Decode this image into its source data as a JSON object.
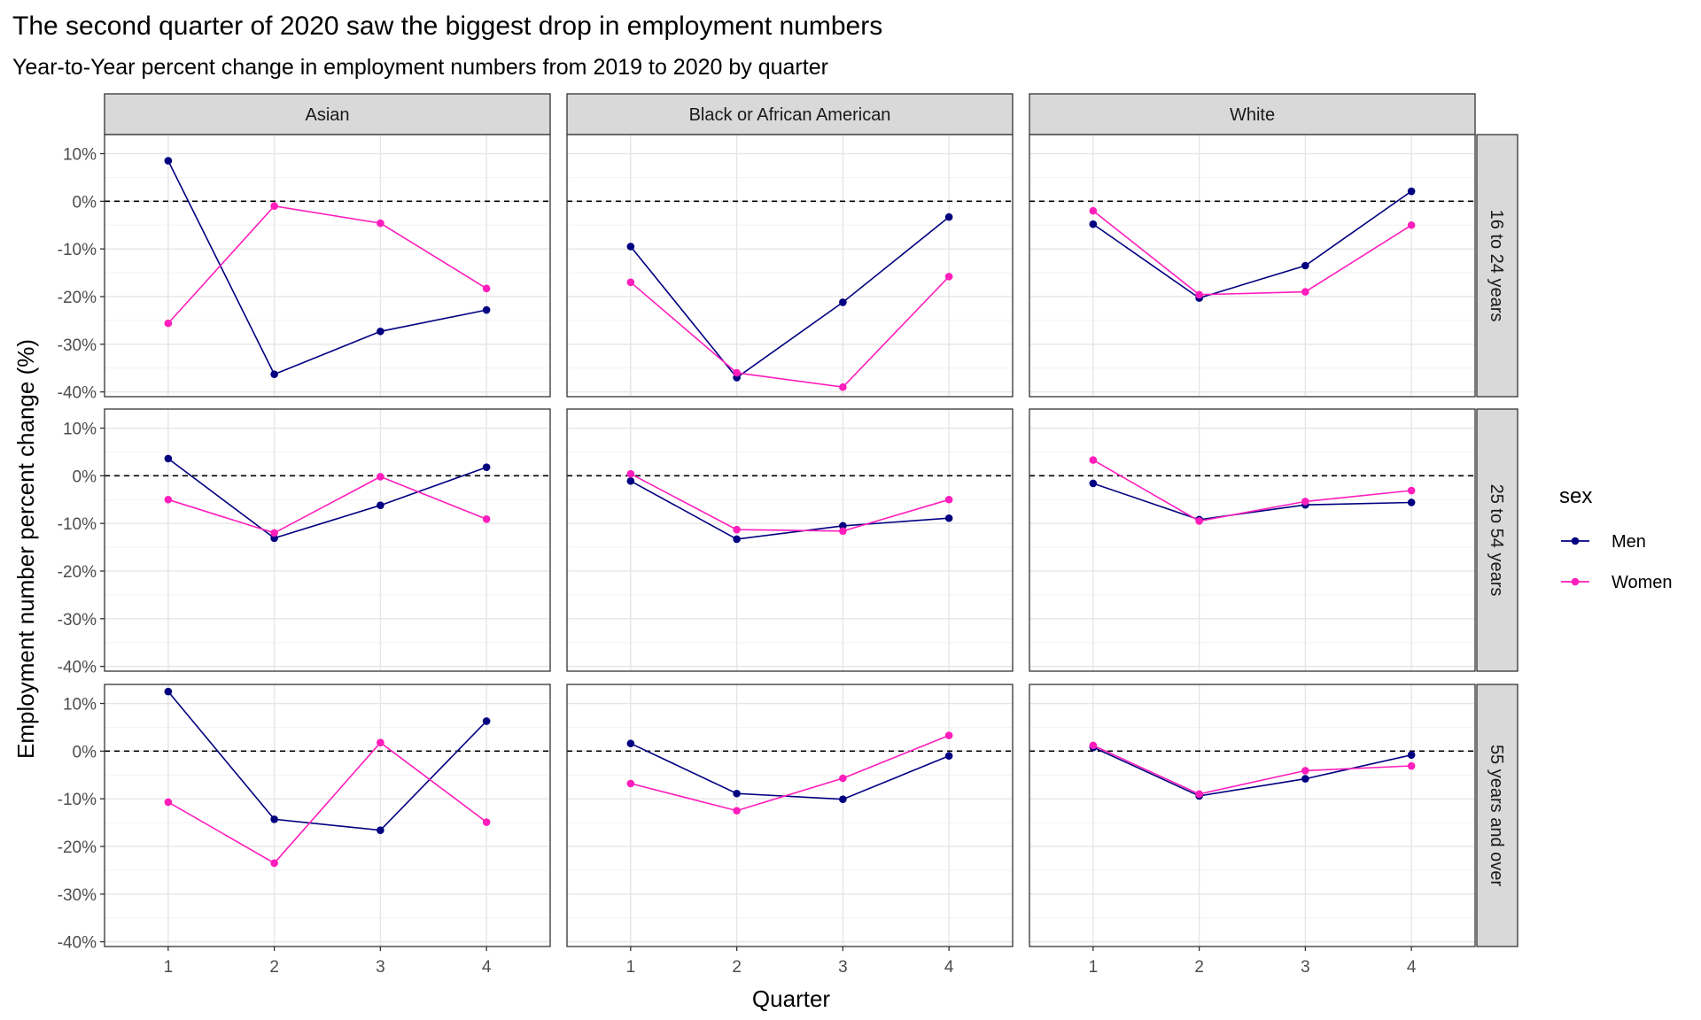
{
  "chart_data": {
    "type": "line",
    "title": "The second quarter of 2020 saw the biggest drop in employment numbers",
    "subtitle": "Year-to-Year percent change in employment numbers from 2019 to 2020 by quarter",
    "xlabel": "Quarter",
    "ylabel": "Employment number percent change (%)",
    "x": [
      1,
      2,
      3,
      4
    ],
    "x_tick_labels": [
      "1",
      "2",
      "3",
      "4"
    ],
    "ylim": [
      -41,
      14
    ],
    "y_ticks": [
      10,
      0,
      -10,
      -20,
      -30,
      -40
    ],
    "y_tick_labels": [
      "10%",
      "0%",
      "-10%",
      "-20%",
      "-30%",
      "-40%"
    ],
    "reference_line": {
      "y": 0,
      "style": "dashed"
    },
    "grid": true,
    "facet_columns": [
      "Asian",
      "Black or African American",
      "White"
    ],
    "facet_rows": [
      "16 to 24 years",
      "25 to 54 years",
      "55 years and over"
    ],
    "legend": {
      "title": "sex",
      "position": "right",
      "entries": [
        {
          "name": "Men",
          "color": "#000080"
        },
        {
          "name": "Women",
          "color": "#FF1DBC"
        }
      ]
    },
    "panels": [
      {
        "column": "Asian",
        "row": "16 to 24 years",
        "series": [
          {
            "name": "Men",
            "values": [
              8.5,
              -36.3,
              -27.3,
              -22.8
            ]
          },
          {
            "name": "Women",
            "values": [
              -25.6,
              -1.0,
              -4.6,
              -18.3
            ]
          }
        ]
      },
      {
        "column": "Black or African American",
        "row": "16 to 24 years",
        "series": [
          {
            "name": "Men",
            "values": [
              -9.5,
              -37.0,
              -21.2,
              -3.3
            ]
          },
          {
            "name": "Women",
            "values": [
              -17.0,
              -36.0,
              -39.0,
              -15.8
            ]
          }
        ]
      },
      {
        "column": "White",
        "row": "16 to 24 years",
        "series": [
          {
            "name": "Men",
            "values": [
              -4.8,
              -20.3,
              -13.5,
              2.1
            ]
          },
          {
            "name": "Women",
            "values": [
              -2.0,
              -19.6,
              -19.0,
              -5.0
            ]
          }
        ]
      },
      {
        "column": "Asian",
        "row": "25 to 54 years",
        "series": [
          {
            "name": "Men",
            "values": [
              3.6,
              -13.1,
              -6.2,
              1.8
            ]
          },
          {
            "name": "Women",
            "values": [
              -5.0,
              -12.0,
              -0.2,
              -9.1
            ]
          }
        ]
      },
      {
        "column": "Black or African American",
        "row": "25 to 54 years",
        "series": [
          {
            "name": "Men",
            "values": [
              -1.1,
              -13.3,
              -10.5,
              -8.9
            ]
          },
          {
            "name": "Women",
            "values": [
              0.4,
              -11.3,
              -11.6,
              -5.0
            ]
          }
        ]
      },
      {
        "column": "White",
        "row": "25 to 54 years",
        "series": [
          {
            "name": "Men",
            "values": [
              -1.6,
              -9.2,
              -6.1,
              -5.6
            ]
          },
          {
            "name": "Women",
            "values": [
              3.3,
              -9.5,
              -5.4,
              -3.1
            ]
          }
        ]
      },
      {
        "column": "Asian",
        "row": "55 years and over",
        "series": [
          {
            "name": "Men",
            "values": [
              12.5,
              -14.3,
              -16.6,
              6.3
            ]
          },
          {
            "name": "Women",
            "values": [
              -10.7,
              -23.5,
              1.8,
              -14.9
            ]
          }
        ]
      },
      {
        "column": "Black or African American",
        "row": "55 years and over",
        "series": [
          {
            "name": "Men",
            "values": [
              1.6,
              -8.9,
              -10.1,
              -1.0
            ]
          },
          {
            "name": "Women",
            "values": [
              -6.8,
              -12.5,
              -5.7,
              3.3
            ]
          }
        ]
      },
      {
        "column": "White",
        "row": "55 years and over",
        "series": [
          {
            "name": "Men",
            "values": [
              0.8,
              -9.4,
              -5.8,
              -0.8
            ]
          },
          {
            "name": "Women",
            "values": [
              1.2,
              -9.0,
              -4.1,
              -3.1
            ]
          }
        ]
      }
    ]
  }
}
